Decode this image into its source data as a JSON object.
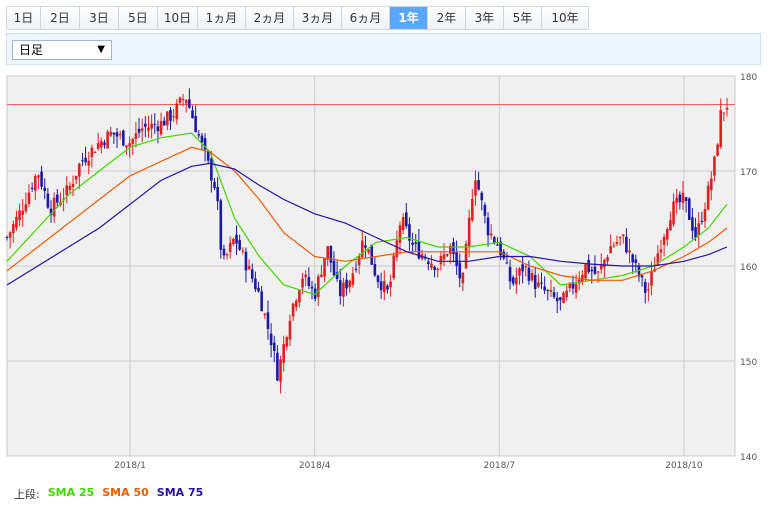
{
  "tabs": [
    "1日",
    "2日",
    "3日",
    "5日",
    "10日",
    "1ヵ月",
    "2ヵ月",
    "3ヵ月",
    "6ヵ月",
    "1年",
    "2年",
    "3年",
    "5年",
    "10年"
  ],
  "active_tab_index": 9,
  "select": {
    "value": "日足"
  },
  "legend": {
    "label": "上段:",
    "items": [
      {
        "name": "SMA 25",
        "color": "#44d400"
      },
      {
        "name": "SMA 50",
        "color": "#f05a00"
      },
      {
        "name": "SMA 75",
        "color": "#2a10a8"
      }
    ]
  },
  "chart_data": {
    "type": "line",
    "ylim": [
      140,
      180
    ],
    "y_ticks": [
      140,
      150,
      160,
      170,
      180
    ],
    "x_ticks": [
      {
        "label": "2018/1",
        "x": 3.8
      },
      {
        "label": "2018/4",
        "x": 6.8
      },
      {
        "label": "2018/7",
        "x": 9.8
      },
      {
        "label": "2018/10",
        "x": 12.8
      }
    ],
    "x_range": [
      1.8,
      13.5
    ],
    "reference_line": 177,
    "colors": {
      "up": "#e02020",
      "down": "#1a1aa8",
      "reference": "#f06060"
    },
    "series": [
      {
        "name": "SMA 25",
        "color": "#44d400",
        "points": [
          [
            1.8,
            160.5
          ],
          [
            2.3,
            164
          ],
          [
            2.8,
            167.5
          ],
          [
            3.3,
            170
          ],
          [
            3.8,
            172.5
          ],
          [
            4.3,
            173.5
          ],
          [
            4.8,
            174
          ],
          [
            5.1,
            172
          ],
          [
            5.5,
            165
          ],
          [
            5.9,
            161
          ],
          [
            6.3,
            158
          ],
          [
            6.8,
            157
          ],
          [
            7.3,
            160
          ],
          [
            7.8,
            162.5
          ],
          [
            8.3,
            163
          ],
          [
            8.8,
            162
          ],
          [
            9.3,
            162
          ],
          [
            9.8,
            162.5
          ],
          [
            10.3,
            161
          ],
          [
            10.8,
            158
          ],
          [
            11.3,
            158.5
          ],
          [
            11.8,
            159
          ],
          [
            12.3,
            160
          ],
          [
            12.8,
            162
          ],
          [
            13.2,
            164
          ],
          [
            13.5,
            166.5
          ]
        ]
      },
      {
        "name": "SMA 50",
        "color": "#f05a00",
        "points": [
          [
            1.8,
            159.5
          ],
          [
            2.3,
            162
          ],
          [
            2.8,
            164.5
          ],
          [
            3.3,
            167
          ],
          [
            3.8,
            169.5
          ],
          [
            4.3,
            171
          ],
          [
            4.8,
            172.5
          ],
          [
            5.1,
            172
          ],
          [
            5.5,
            170
          ],
          [
            5.9,
            167
          ],
          [
            6.3,
            163.5
          ],
          [
            6.8,
            161
          ],
          [
            7.3,
            160.5
          ],
          [
            7.8,
            161
          ],
          [
            8.3,
            161.5
          ],
          [
            8.8,
            161.5
          ],
          [
            9.3,
            161.5
          ],
          [
            9.8,
            161.5
          ],
          [
            10.3,
            160
          ],
          [
            10.8,
            159
          ],
          [
            11.3,
            158.5
          ],
          [
            11.8,
            158.5
          ],
          [
            12.3,
            159.5
          ],
          [
            12.8,
            161
          ],
          [
            13.2,
            162.5
          ],
          [
            13.5,
            164
          ]
        ]
      },
      {
        "name": "SMA 75",
        "color": "#2a10a8",
        "points": [
          [
            1.8,
            158
          ],
          [
            2.3,
            160
          ],
          [
            2.8,
            162
          ],
          [
            3.3,
            164
          ],
          [
            3.8,
            166.5
          ],
          [
            4.3,
            169
          ],
          [
            4.8,
            170.5
          ],
          [
            5.1,
            170.8
          ],
          [
            5.5,
            170.2
          ],
          [
            5.9,
            168.5
          ],
          [
            6.3,
            167
          ],
          [
            6.8,
            165.5
          ],
          [
            7.3,
            164.5
          ],
          [
            7.8,
            163
          ],
          [
            8.3,
            161.5
          ],
          [
            8.8,
            160.5
          ],
          [
            9.3,
            160.5
          ],
          [
            9.8,
            161
          ],
          [
            10.3,
            161
          ],
          [
            10.8,
            160.5
          ],
          [
            11.3,
            160.2
          ],
          [
            11.8,
            160
          ],
          [
            12.3,
            160
          ],
          [
            12.8,
            160.5
          ],
          [
            13.2,
            161.2
          ],
          [
            13.5,
            162
          ]
        ]
      },
      {
        "name": "close",
        "color": "#5a5a5a",
        "points": [
          [
            1.8,
            163
          ],
          [
            2.0,
            165.5
          ],
          [
            2.3,
            170
          ],
          [
            2.5,
            166
          ],
          [
            2.8,
            168
          ],
          [
            3.0,
            171
          ],
          [
            3.3,
            173
          ],
          [
            3.5,
            174
          ],
          [
            3.8,
            173
          ],
          [
            4.0,
            174.5
          ],
          [
            4.3,
            175
          ],
          [
            4.5,
            176
          ],
          [
            4.7,
            178
          ],
          [
            4.9,
            174
          ],
          [
            5.0,
            172
          ],
          [
            5.2,
            168
          ],
          [
            5.3,
            160
          ],
          [
            5.5,
            163
          ],
          [
            5.7,
            160
          ],
          [
            5.9,
            157
          ],
          [
            6.1,
            152
          ],
          [
            6.2,
            148.5
          ],
          [
            6.4,
            155
          ],
          [
            6.6,
            159
          ],
          [
            6.8,
            157
          ],
          [
            7.0,
            162
          ],
          [
            7.2,
            157
          ],
          [
            7.4,
            159
          ],
          [
            7.6,
            163
          ],
          [
            7.8,
            159
          ],
          [
            8.0,
            157
          ],
          [
            8.2,
            165
          ],
          [
            8.4,
            162
          ],
          [
            8.6,
            161
          ],
          [
            8.8,
            160
          ],
          [
            9.0,
            162
          ],
          [
            9.2,
            158
          ],
          [
            9.4,
            170
          ],
          [
            9.6,
            164
          ],
          [
            9.8,
            162
          ],
          [
            10.0,
            158
          ],
          [
            10.2,
            160
          ],
          [
            10.4,
            158
          ],
          [
            10.6,
            157
          ],
          [
            10.8,
            156
          ],
          [
            11.0,
            158
          ],
          [
            11.2,
            160
          ],
          [
            11.4,
            159
          ],
          [
            11.6,
            162
          ],
          [
            11.8,
            163
          ],
          [
            12.0,
            160
          ],
          [
            12.2,
            157
          ],
          [
            12.4,
            162
          ],
          [
            12.6,
            166
          ],
          [
            12.8,
            167
          ],
          [
            13.0,
            163
          ],
          [
            13.2,
            168
          ],
          [
            13.3,
            171
          ],
          [
            13.4,
            176
          ],
          [
            13.5,
            177
          ]
        ]
      }
    ]
  }
}
